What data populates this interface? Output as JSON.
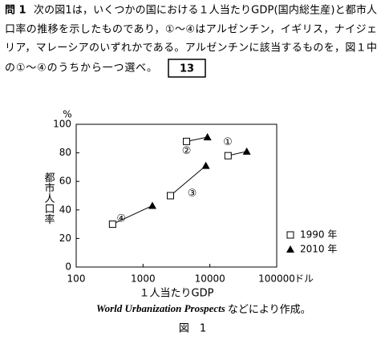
{
  "question": {
    "label": "問 1",
    "lines": [
      "次の図1は，いくつかの国における１人当たりGDP(国内総生産)と都市人",
      "口率の推移を示したものであり，①～④はアルゼンチン，イギリス，ナイジェ",
      "リア，マレーシアのいずれかである。アルゼンチンに該当するものを，図１中",
      "の①～④のうちから一つ選べ。"
    ],
    "answer_box": "13"
  },
  "chart_data": {
    "type": "line",
    "y_unit": "%",
    "y_label": "都市人口率",
    "x_label": "１人当たりGDP",
    "x_unit": "ドル",
    "x_log": true,
    "xlim": [
      100,
      100000
    ],
    "xticks": [
      100,
      1000,
      10000,
      100000
    ],
    "ylim": [
      0,
      100
    ],
    "yticks": [
      0,
      20,
      40,
      60,
      80,
      100
    ],
    "color": "#000000",
    "legend": [
      {
        "label": "1990 年",
        "marker": "square"
      },
      {
        "label": "2010 年",
        "marker": "triangle"
      }
    ],
    "series": [
      {
        "name": "①",
        "x": [
          18700,
          35600
        ],
        "values": [
          78,
          81
        ]
      },
      {
        "name": "②",
        "x": [
          4470,
          9200
        ],
        "values": [
          88,
          91
        ]
      },
      {
        "name": "③",
        "x": [
          2570,
          8700
        ],
        "values": [
          50,
          71
        ]
      },
      {
        "name": "④",
        "x": [
          350,
          1380
        ],
        "values": [
          30,
          43
        ]
      }
    ]
  },
  "source": {
    "italic": "World Urbanization Prospects",
    "rest": "などにより作成。"
  },
  "figure_label": "図　1"
}
